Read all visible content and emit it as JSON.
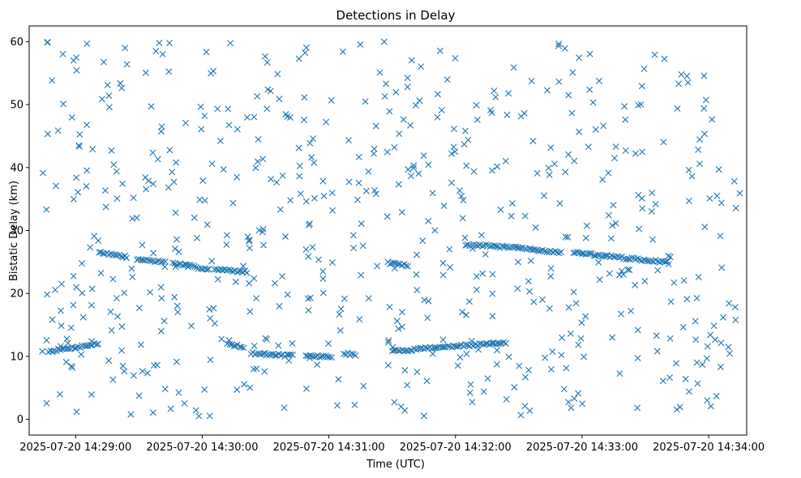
{
  "chart_data": {
    "type": "scatter",
    "title": "Detections in Delay",
    "xlabel": "Time (UTC)",
    "ylabel": "Bistatic Delay (km)",
    "marker": "x",
    "color": "#1f77b4",
    "xlim_seconds": [
      -22,
      318
    ],
    "ylim": [
      -2.5,
      62.5
    ],
    "x_origin": "2025-07-20 14:29:00",
    "x_ticks": [
      {
        "seconds": 0,
        "label": "2025-07-20 14:29:00"
      },
      {
        "seconds": 60,
        "label": "2025-07-20 14:30:00"
      },
      {
        "seconds": 120,
        "label": "2025-07-20 14:31:00"
      },
      {
        "seconds": 180,
        "label": "2025-07-20 14:32:00"
      },
      {
        "seconds": 240,
        "label": "2025-07-20 14:33:00"
      },
      {
        "seconds": 300,
        "label": "2025-07-20 14:34:00"
      }
    ],
    "y_ticks": [
      {
        "value": 0,
        "label": "0"
      },
      {
        "value": 10,
        "label": "10"
      },
      {
        "value": 20,
        "label": "20"
      },
      {
        "value": 30,
        "label": "30"
      },
      {
        "value": 40,
        "label": "40"
      },
      {
        "value": 50,
        "label": "50"
      },
      {
        "value": 60,
        "label": "60"
      }
    ],
    "x_range_seconds": [
      -16,
      315
    ],
    "track_segments": [
      {
        "x0": -13,
        "x1": 11,
        "y0": 10.8,
        "y1": 12.0
      },
      {
        "x0": 11,
        "x1": 25,
        "y0": 26.6,
        "y1": 25.7
      },
      {
        "x0": 29,
        "x1": 42,
        "y0": 25.4,
        "y1": 25.0
      },
      {
        "x0": 46,
        "x1": 64,
        "y0": 24.8,
        "y1": 23.8
      },
      {
        "x0": 66,
        "x1": 82,
        "y0": 23.8,
        "y1": 23.4
      },
      {
        "x0": 72,
        "x1": 80,
        "y0": 12.0,
        "y1": 11.5
      },
      {
        "x0": 83,
        "x1": 103,
        "y0": 10.5,
        "y1": 10.1
      },
      {
        "x0": 109,
        "x1": 122,
        "y0": 10.1,
        "y1": 9.9
      },
      {
        "x0": 127,
        "x1": 133,
        "y0": 10.5,
        "y1": 10.2
      },
      {
        "x0": 148,
        "x1": 158,
        "y0": 24.9,
        "y1": 24.4
      },
      {
        "x0": 150,
        "x1": 164,
        "y0": 10.8,
        "y1": 11.2
      },
      {
        "x0": 164,
        "x1": 180,
        "y0": 11.3,
        "y1": 11.6
      },
      {
        "x0": 180,
        "x1": 204,
        "y0": 11.6,
        "y1": 12.2
      },
      {
        "x0": 185,
        "x1": 210,
        "y0": 27.8,
        "y1": 27.2
      },
      {
        "x0": 210,
        "x1": 230,
        "y0": 27.2,
        "y1": 26.5
      },
      {
        "x0": 236,
        "x1": 272,
        "y0": 26.5,
        "y1": 25.2
      },
      {
        "x0": 272,
        "x1": 281,
        "y0": 25.2,
        "y1": 25.0
      }
    ],
    "scatter_count": 620,
    "scatter_y_range": [
      0.5,
      60
    ],
    "seed": 7
  }
}
